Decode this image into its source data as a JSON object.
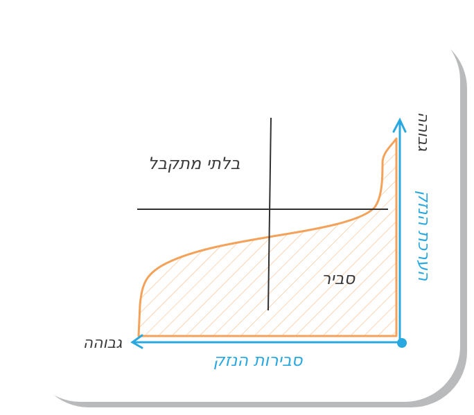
{
  "labels": {
    "unacceptable": "בלתי מתקבל",
    "reasonable": "סביר",
    "x_axis_title": "סבירות הנזק",
    "x_axis_high": "גבוהה",
    "y_axis_title": "הערכת הנזק",
    "y_axis_high": "גבוהה"
  },
  "colors": {
    "axis": "#29a8e0",
    "region": "#f4a259",
    "text": "#3a3a3a",
    "card_shadow": "#b9babc"
  }
}
